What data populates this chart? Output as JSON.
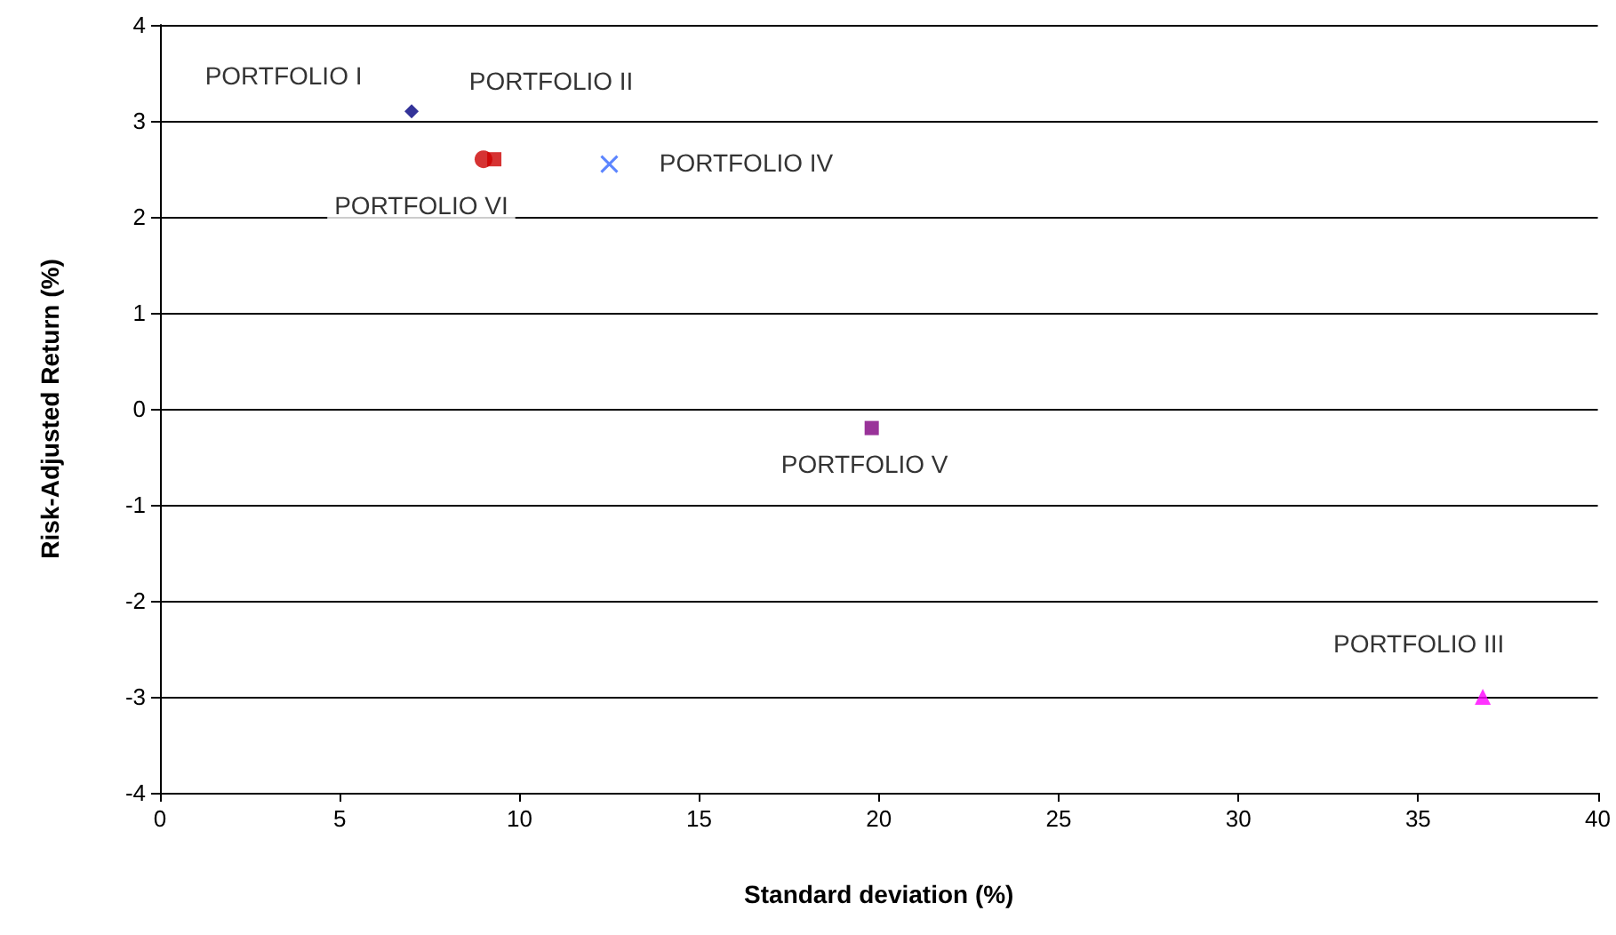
{
  "chart_data": {
    "type": "scatter",
    "xlabel": "Standard deviation (%)",
    "ylabel": "Risk-Adjusted Return (%)",
    "xlim": [
      0,
      40
    ],
    "xticks": [
      0,
      5,
      10,
      15,
      20,
      25,
      30,
      35,
      40
    ],
    "ylim": [
      -4,
      4
    ],
    "yticks": [
      -4,
      -3,
      -2,
      -1,
      0,
      1,
      2,
      3,
      4
    ],
    "grid": "y",
    "series": [
      {
        "name": "PORTFOLIO I",
        "color": "#000080",
        "marker": "diamond",
        "x": [
          7.0
        ],
        "values": [
          3.1
        ]
      },
      {
        "name": "PORTFOLIO II",
        "color": "#cc0000",
        "marker": "square",
        "x": [
          9.3
        ],
        "values": [
          2.6
        ]
      },
      {
        "name": "PORTFOLIO III",
        "color": "#ff00ff",
        "marker": "triangle",
        "x": [
          36.8
        ],
        "values": [
          -3.0
        ]
      },
      {
        "name": "PORTFOLIO IV",
        "color": "#3366ff",
        "marker": "cross",
        "x": [
          12.5
        ],
        "values": [
          2.55
        ]
      },
      {
        "name": "PORTFOLIO V",
        "color": "#800080",
        "marker": "square",
        "x": [
          19.8
        ],
        "values": [
          -0.2
        ]
      },
      {
        "name": "PORTFOLIO VI",
        "color": "#cc0000",
        "marker": "circle",
        "x": [
          9.0
        ],
        "values": [
          2.6
        ]
      }
    ]
  }
}
